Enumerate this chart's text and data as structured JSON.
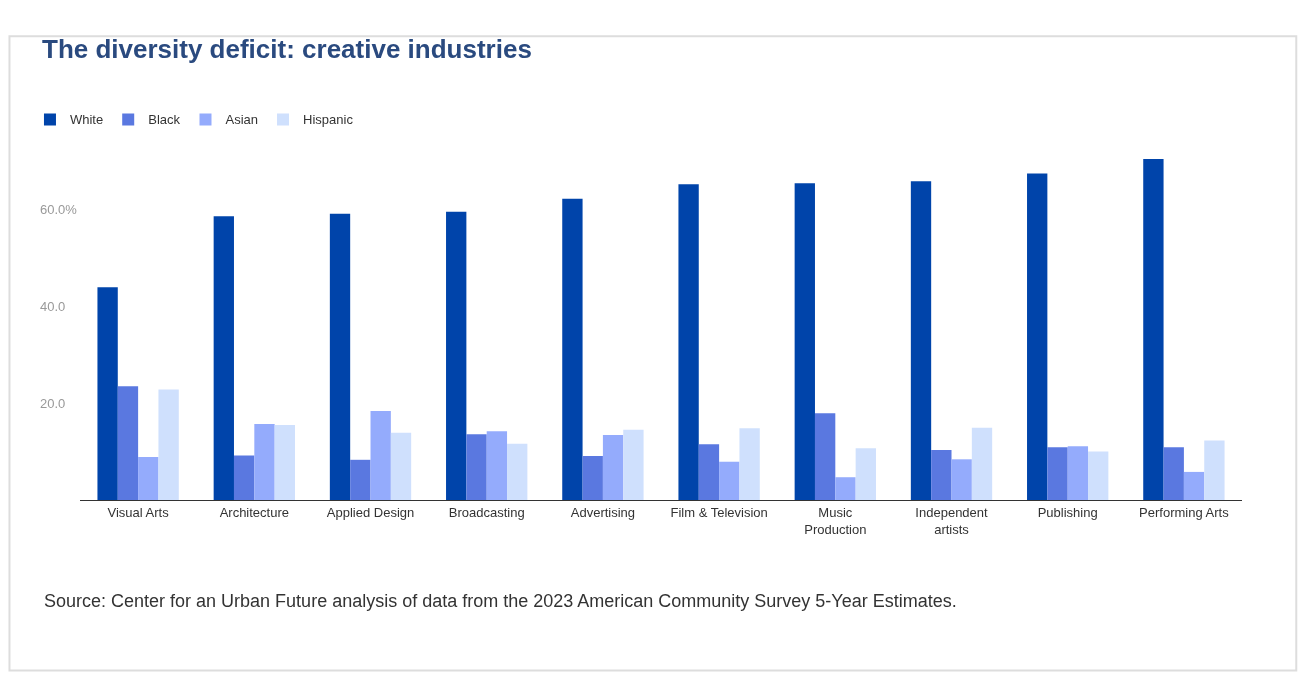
{
  "chart_data": {
    "type": "bar",
    "title": "The diversity deficit: creative industries",
    "categories": [
      "Visual Arts",
      "Architecture",
      "Applied Design",
      "Broadcasting",
      "Advertising",
      "Film & Television",
      "Music\nProduction",
      "Independent\nartists",
      "Publishing",
      "Performing Arts"
    ],
    "series": [
      {
        "name": "White",
        "color": "#0044aa",
        "values": [
          43.9,
          58.6,
          59.1,
          59.5,
          62.2,
          65.2,
          65.4,
          65.8,
          67.4,
          70.4
        ]
      },
      {
        "name": "Black",
        "color": "#5a78e0",
        "values": [
          23.5,
          9.2,
          8.3,
          13.6,
          9.1,
          11.5,
          17.9,
          10.3,
          10.9,
          10.9
        ]
      },
      {
        "name": "Asian",
        "color": "#94abfc",
        "values": [
          8.9,
          15.7,
          18.4,
          14.2,
          13.4,
          7.9,
          4.7,
          8.4,
          11.1,
          5.8
        ]
      },
      {
        "name": "Hispanic",
        "color": "#cfe0fd",
        "values": [
          22.8,
          15.5,
          13.9,
          11.6,
          14.5,
          14.8,
          10.7,
          14.9,
          10.0,
          12.3
        ]
      }
    ],
    "ylim": [
      0,
      70.4
    ],
    "yticks": [
      {
        "value": 20,
        "label": "20.0"
      },
      {
        "value": 40,
        "label": "40.0"
      },
      {
        "value": 60,
        "label": "60.0%"
      }
    ],
    "legend": "top left",
    "annotations": [
      "Source: Center for an Urban Future analysis of data from the 2023 American Community Survey 5-Year Estimates."
    ]
  }
}
